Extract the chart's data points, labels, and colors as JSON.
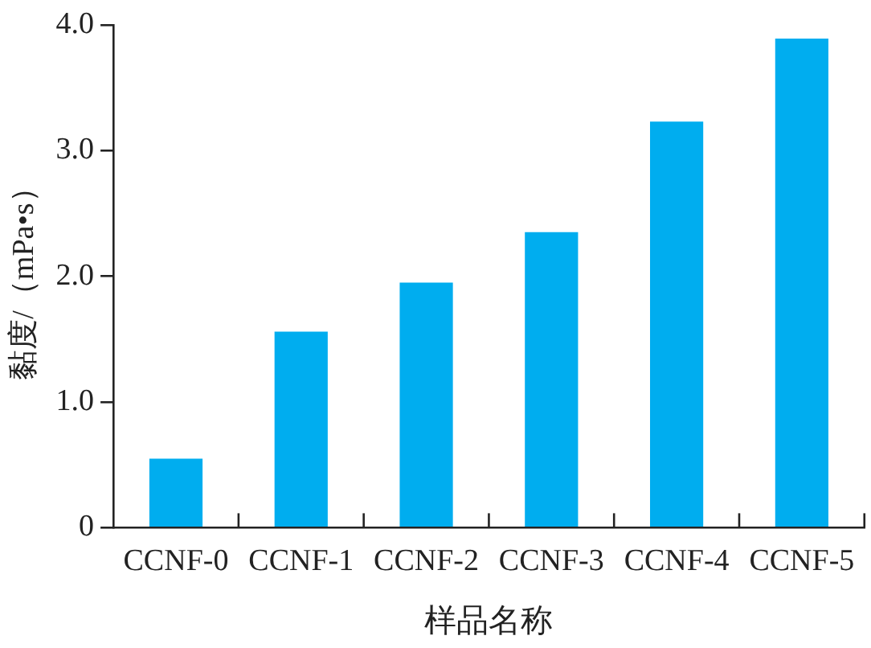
{
  "chart_data": {
    "type": "bar",
    "xlabel": "样品名称",
    "ylabel": "黏度/（mPa•s）",
    "categories": [
      "CCNF-0",
      "CCNF-1",
      "CCNF-2",
      "CCNF-3",
      "CCNF-4",
      "CCNF-5"
    ],
    "values": [
      0.55,
      1.56,
      1.95,
      2.35,
      3.23,
      3.89
    ],
    "color": "#00adef",
    "ylim": [
      0,
      4
    ],
    "yticks": [
      0,
      {
        "value": 1,
        "label": "1.0"
      },
      {
        "value": 2,
        "label": "2.0"
      },
      {
        "value": 3,
        "label": "3.0"
      },
      {
        "value": 4,
        "label": "4.0"
      }
    ],
    "grid": false,
    "legend": false
  }
}
